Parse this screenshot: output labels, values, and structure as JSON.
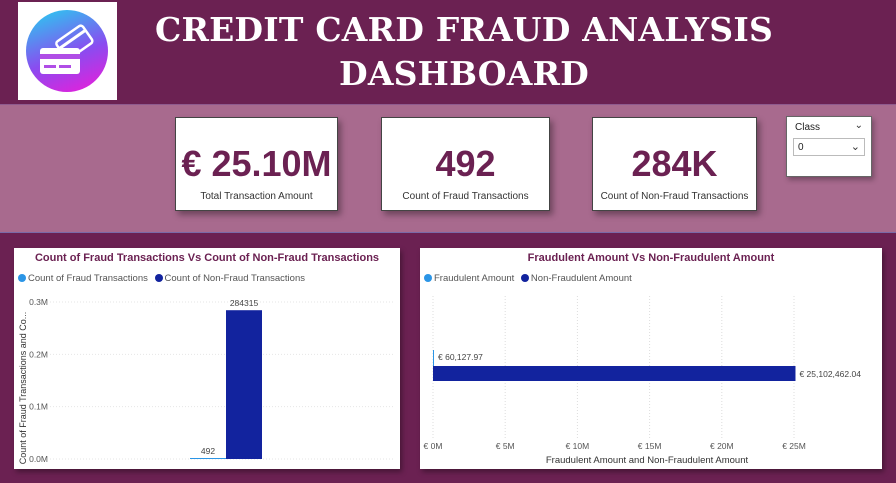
{
  "header": {
    "title_line1": "CREDIT CARD FRAUD ANALYSIS",
    "title_line2": "DASHBOARD",
    "logo_icon": "credit-card-icon"
  },
  "kpis": [
    {
      "value": "€ 25.10M",
      "label": "Total Transaction Amount"
    },
    {
      "value": "492",
      "label": "Count of Fraud Transactions"
    },
    {
      "value": "284K",
      "label": "Count of Non-Fraud Transactions"
    }
  ],
  "slicer": {
    "title": "Class",
    "selected": "0"
  },
  "colors": {
    "fraud": "#2b95e6",
    "non_fraud": "#12239e",
    "accent": "#6b2152"
  },
  "charts": {
    "count_chart": {
      "title": "Count of Fraud Transactions Vs Count of Non-Fraud Transactions",
      "legend": [
        "Count of Fraud Transactions",
        "Count of Non-Fraud Transactions"
      ],
      "ylabel": "Count of Fraud Transactions and Co..."
    },
    "amount_chart": {
      "title": "Fraudulent Amount Vs Non-Fraudulent Amount",
      "legend": [
        "Fraudulent Amount",
        "Non-Fraudulent Amount"
      ],
      "xlabel": "Fraudulent Amount and Non-Fraudulent Amount"
    }
  },
  "chart_data": [
    {
      "type": "bar",
      "orientation": "vertical",
      "title": "Count of Fraud Transactions Vs Count of Non-Fraud Transactions",
      "ylabel": "Count of Fraud Transactions and Co...",
      "series": [
        {
          "name": "Count of Fraud Transactions",
          "values": [
            492
          ],
          "labels": [
            "492"
          ]
        },
        {
          "name": "Count of Non-Fraud Transactions",
          "values": [
            284315
          ],
          "labels": [
            "284315"
          ]
        }
      ],
      "yticks": [
        0,
        100000,
        200000,
        300000
      ],
      "ytick_labels": [
        "0.0M",
        "0.1M",
        "0.2M",
        "0.3M"
      ],
      "ylim": [
        0,
        300000
      ],
      "legend_position": "top-left",
      "grid": true
    },
    {
      "type": "bar",
      "orientation": "horizontal",
      "title": "Fraudulent Amount Vs Non-Fraudulent Amount",
      "xlabel": "Fraudulent Amount and Non-Fraudulent Amount",
      "series": [
        {
          "name": "Fraudulent Amount",
          "values": [
            60127.97
          ],
          "labels": [
            "€ 60,127.97"
          ]
        },
        {
          "name": "Non-Fraudulent Amount",
          "values": [
            25102462.04
          ],
          "labels": [
            "€ 25,102,462.04"
          ]
        }
      ],
      "xticks": [
        0,
        5000000,
        10000000,
        15000000,
        20000000,
        25000000
      ],
      "xtick_labels": [
        "€ 0M",
        "€ 5M",
        "€ 10M",
        "€ 15M",
        "€ 20M",
        "€ 25M"
      ],
      "xlim": [
        0,
        25000000
      ],
      "legend_position": "top-left",
      "grid": true
    }
  ]
}
